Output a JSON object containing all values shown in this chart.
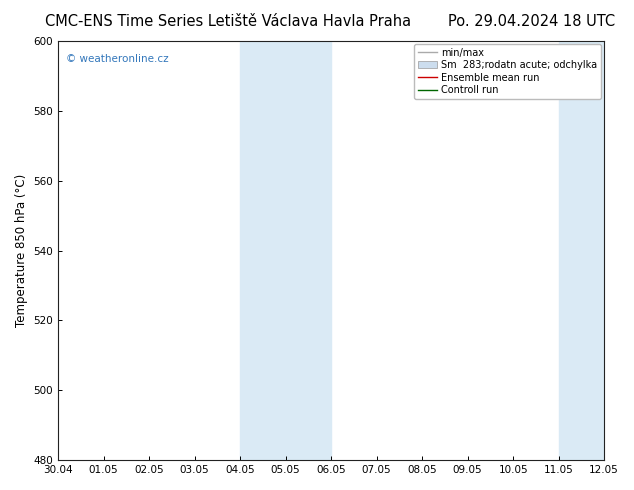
{
  "title": "CMC-ENS Time Series Letiště Václava Havla Praha",
  "date_label": "Po. 29.04.2024 18 UTC",
  "ylabel": "Temperature 850 hPa (°C)",
  "ylim": [
    480,
    600
  ],
  "yticks": [
    480,
    500,
    520,
    540,
    560,
    580,
    600
  ],
  "xlabels": [
    "30.04",
    "01.05",
    "02.05",
    "03.05",
    "04.05",
    "05.05",
    "06.05",
    "07.05",
    "08.05",
    "09.05",
    "10.05",
    "11.05",
    "12.05"
  ],
  "shaded_regions": [
    {
      "xstart": 4,
      "xend": 6,
      "color": "#daeaf5"
    },
    {
      "xstart": 11,
      "xend": 13,
      "color": "#daeaf5"
    }
  ],
  "watermark": "© weatheronline.cz",
  "watermark_color": "#3377bb",
  "legend_items": [
    {
      "label": "min/max",
      "type": "line",
      "color": "#aaaaaa"
    },
    {
      "label": "Sm  283;rodatn acute; odchylka",
      "type": "patch",
      "color": "#ccddee"
    },
    {
      "label": "Ensemble mean run",
      "type": "line",
      "color": "#cc0000"
    },
    {
      "label": "Controll run",
      "type": "line",
      "color": "#006600"
    }
  ],
  "bg_color": "#ffffff",
  "plot_bg_color": "#ffffff",
  "border_color": "#222222",
  "tick_label_fontsize": 7.5,
  "axis_label_fontsize": 8.5,
  "title_fontsize": 10.5
}
